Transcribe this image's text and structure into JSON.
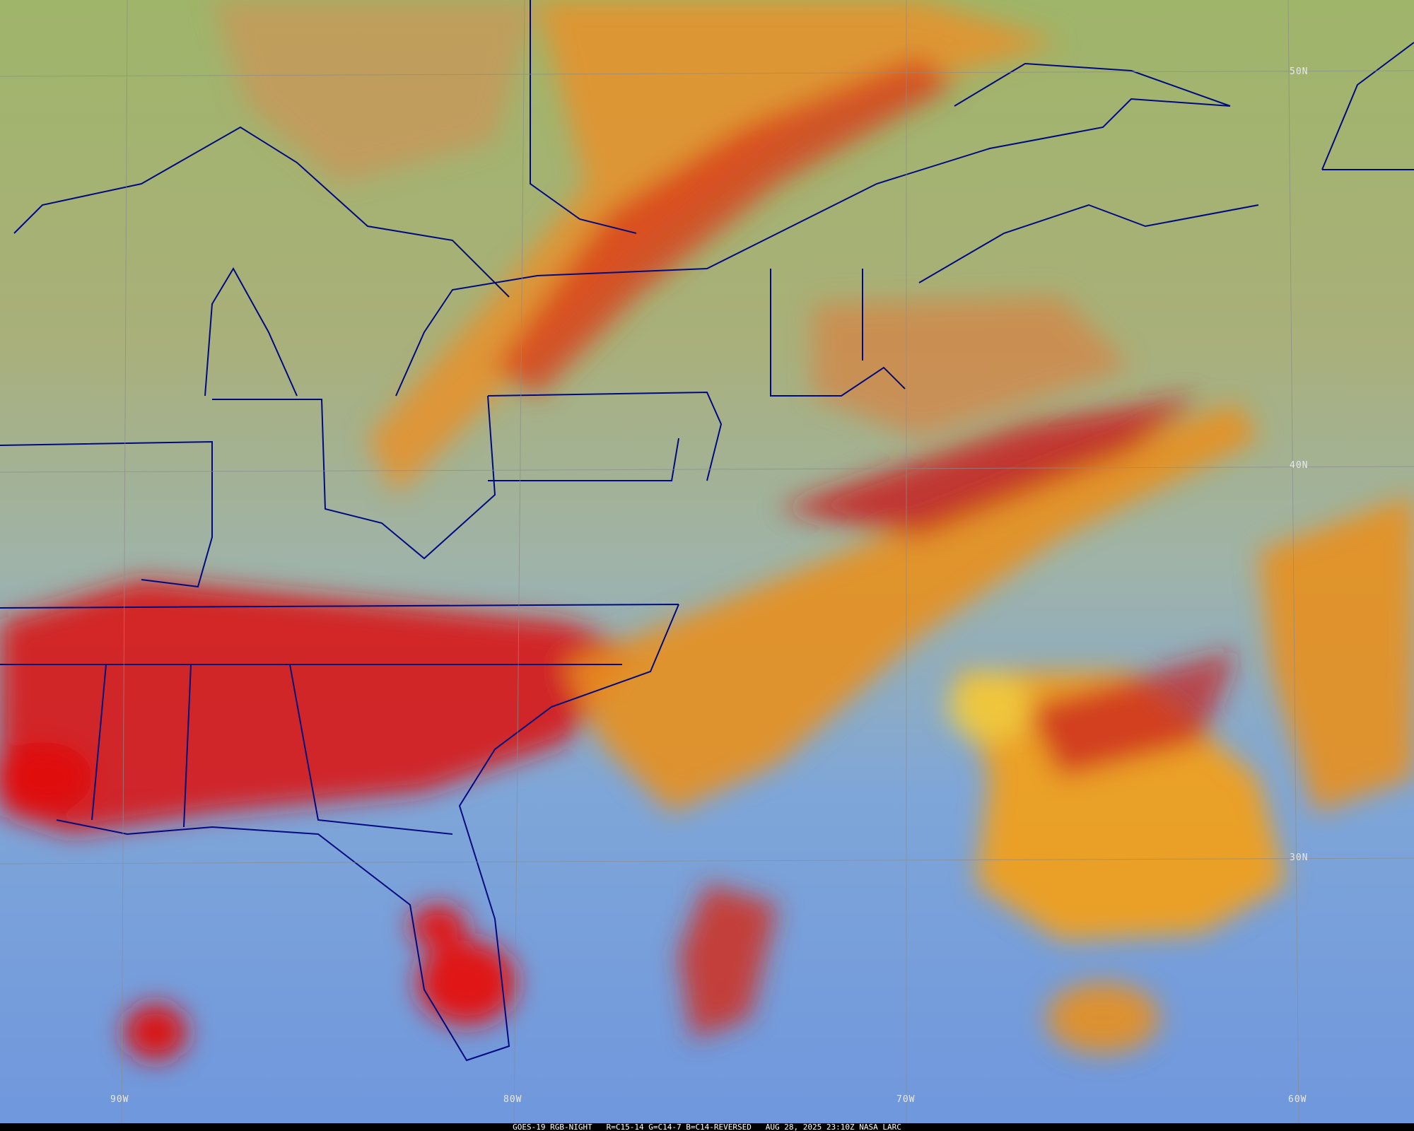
{
  "imagery": {
    "product": "RGB-NIGHT",
    "colors": {
      "cold_cloud": "#d81414",
      "mid_cloud": "#f2a020",
      "low_cloud": "#f0d040",
      "land": "#9fb56a",
      "ocean": "#6f97dd",
      "outline": "#000a80"
    }
  },
  "grid": {
    "lat_labels": [
      "50N",
      "40N",
      "30N"
    ],
    "lon_labels": [
      "90W",
      "80W",
      "70W",
      "60W"
    ]
  },
  "caption": {
    "satellite": "GOES-19 RGB-NIGHT",
    "channels": "R=C15-14 G=C14-7 B=C14-REVERSED",
    "datetime": "AUG 28, 2025 23:10Z NASA LARC"
  }
}
